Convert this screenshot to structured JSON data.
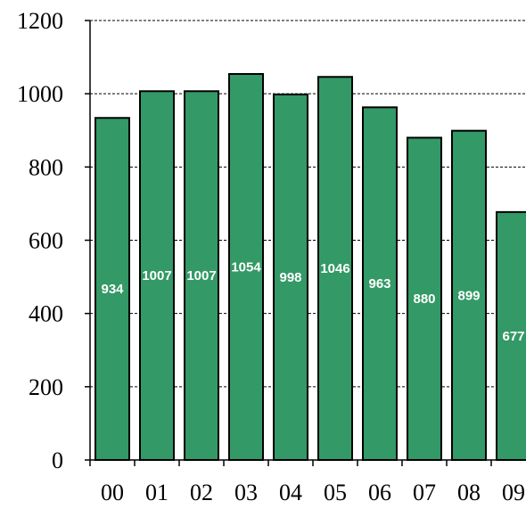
{
  "chart_data": {
    "type": "bar",
    "categories": [
      "00",
      "01",
      "02",
      "03",
      "04",
      "05",
      "06",
      "07",
      "08",
      "09"
    ],
    "values": [
      934,
      1007,
      1007,
      1054,
      998,
      1046,
      963,
      880,
      899,
      677
    ],
    "data_labels": [
      "934",
      "1007",
      "1007",
      "1054",
      "998",
      "1046",
      "963",
      "880",
      "899",
      "677"
    ],
    "y_ticks": [
      0,
      200,
      400,
      600,
      800,
      1000,
      1200
    ],
    "y_tick_labels": [
      "0",
      "200",
      "400",
      "600",
      "800",
      "1000",
      "1200"
    ],
    "ylim": [
      0,
      1200
    ],
    "title": "",
    "xlabel": "",
    "ylabel": "",
    "grid": "horizontal dashed",
    "legend": "none",
    "colors": {
      "bar": "#339966",
      "bar_edge": "#000000",
      "grid": "#000000",
      "axis": "#000000"
    }
  }
}
